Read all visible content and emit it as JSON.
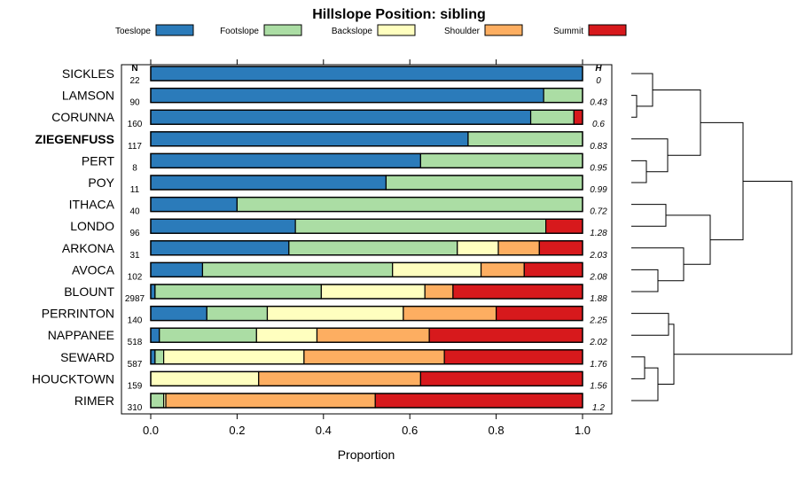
{
  "chart_data": {
    "type": "bar",
    "orientation": "horizontal",
    "stacked": true,
    "title": "Hillslope Position: sibling",
    "xlabel": "Proportion",
    "xlim": [
      0,
      1
    ],
    "x_ticks": [
      "0.0",
      "0.2",
      "0.4",
      "0.6",
      "0.8",
      "1.0"
    ],
    "x_tick_values": [
      0,
      0.2,
      0.4,
      0.6,
      0.8,
      1.0
    ],
    "legend": {
      "placement": "top",
      "entries": [
        {
          "name": "Toeslope",
          "color": "#2b7bba"
        },
        {
          "name": "Footslope",
          "color": "#abdda4"
        },
        {
          "name": "Backslope",
          "color": "#ffffbf"
        },
        {
          "name": "Shoulder",
          "color": "#fdae61"
        },
        {
          "name": "Summit",
          "color": "#d7191c"
        }
      ]
    },
    "n_header": "N",
    "h_header": "H",
    "highlight": "ZIEGENFUSS",
    "categories": [
      "SICKLES",
      "LAMSON",
      "CORUNNA",
      "ZIEGENFUSS",
      "PERT",
      "POY",
      "ITHACA",
      "LONDO",
      "ARKONA",
      "AVOCA",
      "BLOUNT",
      "PERRINTON",
      "NAPPANEE",
      "SEWARD",
      "HOUCKTOWN",
      "RIMER"
    ],
    "n": [
      "22",
      "90",
      "160",
      "117",
      "8",
      "11",
      "40",
      "96",
      "31",
      "102",
      "2987",
      "140",
      "518",
      "587",
      "159",
      "310"
    ],
    "h": [
      "0",
      "0.43",
      "0.6",
      "0.83",
      "0.95",
      "0.99",
      "0.72",
      "1.28",
      "2.03",
      "2.08",
      "1.88",
      "2.25",
      "2.02",
      "1.76",
      "1.56",
      "1.2"
    ],
    "series": [
      {
        "name": "Toeslope",
        "values": [
          1.0,
          0.91,
          0.88,
          0.735,
          0.625,
          0.545,
          0.2,
          0.335,
          0.32,
          0.12,
          0.01,
          0.13,
          0.02,
          0.01,
          0.0,
          0.0
        ]
      },
      {
        "name": "Footslope",
        "values": [
          0.0,
          0.09,
          0.1,
          0.265,
          0.375,
          0.455,
          0.8,
          0.58,
          0.39,
          0.44,
          0.385,
          0.14,
          0.225,
          0.02,
          0.0,
          0.03
        ]
      },
      {
        "name": "Backslope",
        "values": [
          0.0,
          0.0,
          0.0,
          0.0,
          0.0,
          0.0,
          0.0,
          0.0,
          0.095,
          0.205,
          0.24,
          0.315,
          0.14,
          0.325,
          0.25,
          0.005
        ]
      },
      {
        "name": "Shoulder",
        "values": [
          0.0,
          0.0,
          0.0,
          0.0,
          0.0,
          0.0,
          0.0,
          0.0,
          0.095,
          0.1,
          0.065,
          0.215,
          0.26,
          0.325,
          0.375,
          0.485
        ]
      },
      {
        "name": "Summit",
        "values": [
          0.0,
          0.0,
          0.02,
          0.0,
          0.0,
          0.0,
          0.0,
          0.085,
          0.1,
          0.135,
          0.3,
          0.2,
          0.355,
          0.32,
          0.375,
          0.48
        ]
      }
    ]
  }
}
